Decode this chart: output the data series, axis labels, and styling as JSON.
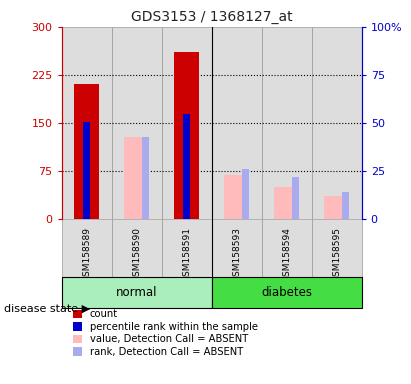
{
  "title": "GDS3153 / 1368127_at",
  "samples": [
    "GSM158589",
    "GSM158590",
    "GSM158591",
    "GSM158593",
    "GSM158594",
    "GSM158595"
  ],
  "left_ylim": [
    0,
    300
  ],
  "right_ylim": [
    0,
    100
  ],
  "left_yticks": [
    0,
    75,
    150,
    225,
    300
  ],
  "right_yticks": [
    0,
    25,
    50,
    75,
    100
  ],
  "left_yticklabels": [
    "0",
    "75",
    "150",
    "225",
    "300"
  ],
  "right_yticklabels": [
    "0",
    "25",
    "50",
    "75",
    "100%"
  ],
  "count_color": "#cc0000",
  "count_values": [
    210,
    null,
    260,
    null,
    null,
    null
  ],
  "pct_color": "#0000cc",
  "pct_values": [
    152,
    null,
    163,
    null,
    null,
    null
  ],
  "value_absent_color": "#ffbbbb",
  "value_absent_values": [
    null,
    128,
    null,
    68,
    50,
    35
  ],
  "rank_absent_color": "#aaaaee",
  "rank_absent_values": [
    null,
    128,
    null,
    78,
    65,
    42
  ],
  "legend_labels": [
    "count",
    "percentile rank within the sample",
    "value, Detection Call = ABSENT",
    "rank, Detection Call = ABSENT"
  ],
  "legend_colors": [
    "#cc0000",
    "#0000cc",
    "#ffbbbb",
    "#aaaaee"
  ],
  "bg_col": "#dddddd",
  "normal_bg": "#aaeebb",
  "diabetes_bg": "#44dd44",
  "title_color": "#222222",
  "left_axis_color": "#cc0000",
  "right_axis_color": "#0000cc"
}
